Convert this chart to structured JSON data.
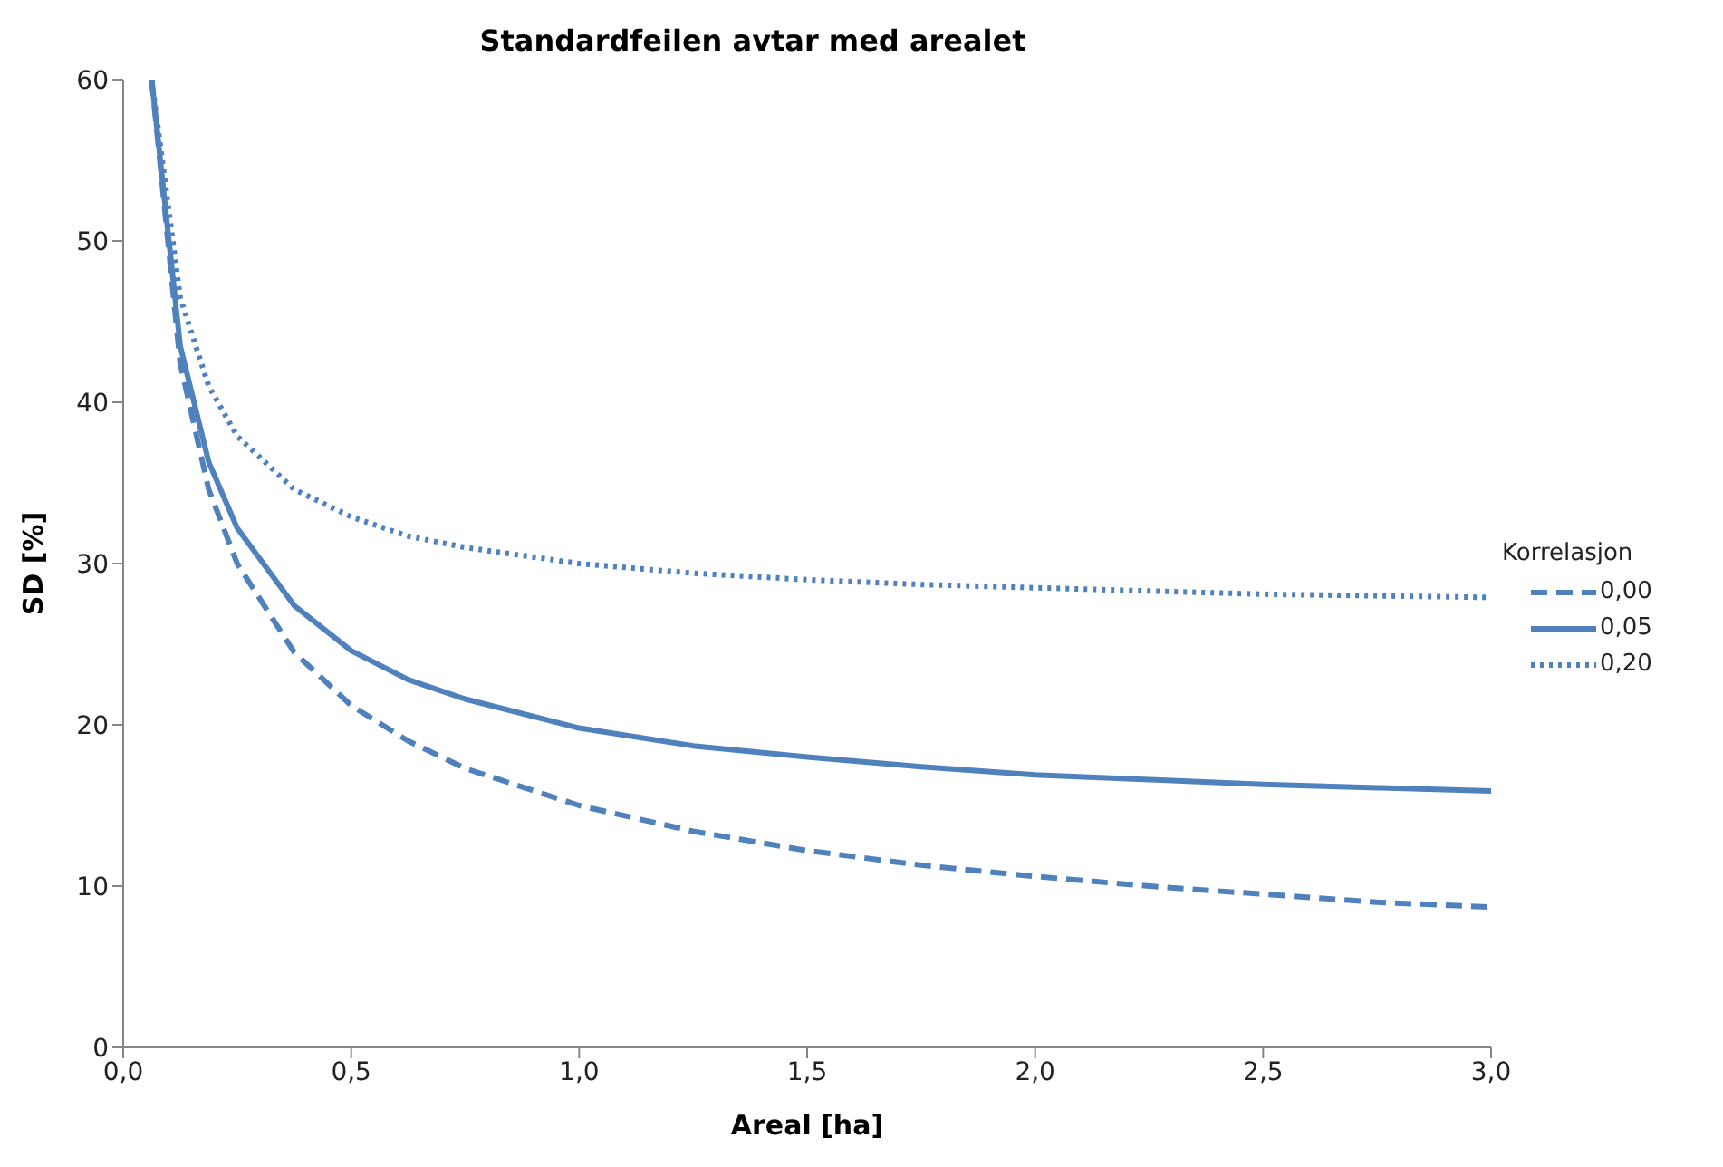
{
  "chart_data": {
    "type": "line",
    "title": "Standardfeilen avtar med arealet",
    "xlabel": "Areal [ha]",
    "ylabel": "SD [%]",
    "legend_title": "Korrelasjon",
    "legend": "right",
    "grid": false,
    "marker": "none",
    "x": [
      0.0625,
      0.125,
      0.1875,
      0.25,
      0.375,
      0.5,
      0.625,
      0.75,
      1,
      1.25,
      1.5,
      1.75,
      2,
      2.25,
      2.5,
      2.75,
      3
    ],
    "series": [
      {
        "name": "0,00",
        "color": "#4f81bd",
        "line_style": "dashed",
        "values": [
          60,
          42.4,
          34.6,
          30,
          24.5,
          21.2,
          19.0,
          17.3,
          15,
          13.4,
          12.2,
          11.3,
          10.6,
          10.0,
          9.5,
          9.0,
          8.7
        ]
      },
      {
        "name": "0,05",
        "color": "#4f81bd",
        "line_style": "solid",
        "values": [
          60,
          43.5,
          36.3,
          32.2,
          27.4,
          24.6,
          22.8,
          21.6,
          19.8,
          18.7,
          18.0,
          17.4,
          16.9,
          16.6,
          16.3,
          16.1,
          15.9
        ]
      },
      {
        "name": "0,20",
        "color": "#4f81bd",
        "line_style": "dotted",
        "values": [
          60,
          46.5,
          41.0,
          37.9,
          34.6,
          32.9,
          31.7,
          31.0,
          30.0,
          29.4,
          29.0,
          28.7,
          28.5,
          28.3,
          28.1,
          28.0,
          27.9
        ]
      }
    ],
    "xlim": [
      0,
      3
    ],
    "xticks": [
      {
        "value": 0,
        "label": "0,0"
      },
      {
        "value": 0.5,
        "label": "0,5"
      },
      {
        "value": 1,
        "label": "1,0"
      },
      {
        "value": 1.5,
        "label": "1,5"
      },
      {
        "value": 2,
        "label": "2,0"
      },
      {
        "value": 2.5,
        "label": "2,5"
      },
      {
        "value": 3,
        "label": "3,0"
      }
    ],
    "ylim": [
      0,
      60
    ],
    "yticks": [
      0,
      10,
      20,
      30,
      40,
      50,
      60
    ]
  }
}
